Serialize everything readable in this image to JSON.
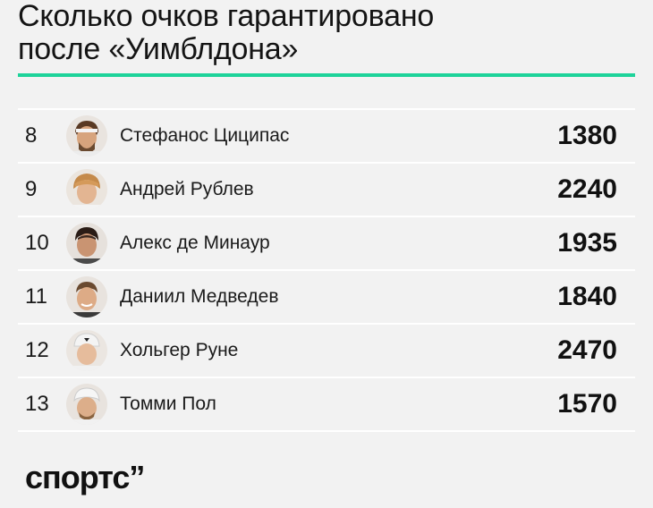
{
  "header": {
    "title_line1": "Сколько очков гарантировано",
    "title_line2": "после «Уимблдона»"
  },
  "rows": [
    {
      "rank": "8",
      "name": "Стефанос Циципас",
      "points": "1380"
    },
    {
      "rank": "9",
      "name": "Андрей Рублев",
      "points": "2240"
    },
    {
      "rank": "10",
      "name": "Алекс де Минаур",
      "points": "1935"
    },
    {
      "rank": "11",
      "name": "Даниил Медведев",
      "points": "1840"
    },
    {
      "rank": "12",
      "name": "Хольгер Руне",
      "points": "2470"
    },
    {
      "rank": "13",
      "name": "Томми Пол",
      "points": "1570"
    }
  ],
  "footer": {
    "logo": "спортс’’"
  },
  "colors": {
    "accent": "#1ed39a",
    "background": "#f2f2f2",
    "divider": "#ffffff"
  }
}
